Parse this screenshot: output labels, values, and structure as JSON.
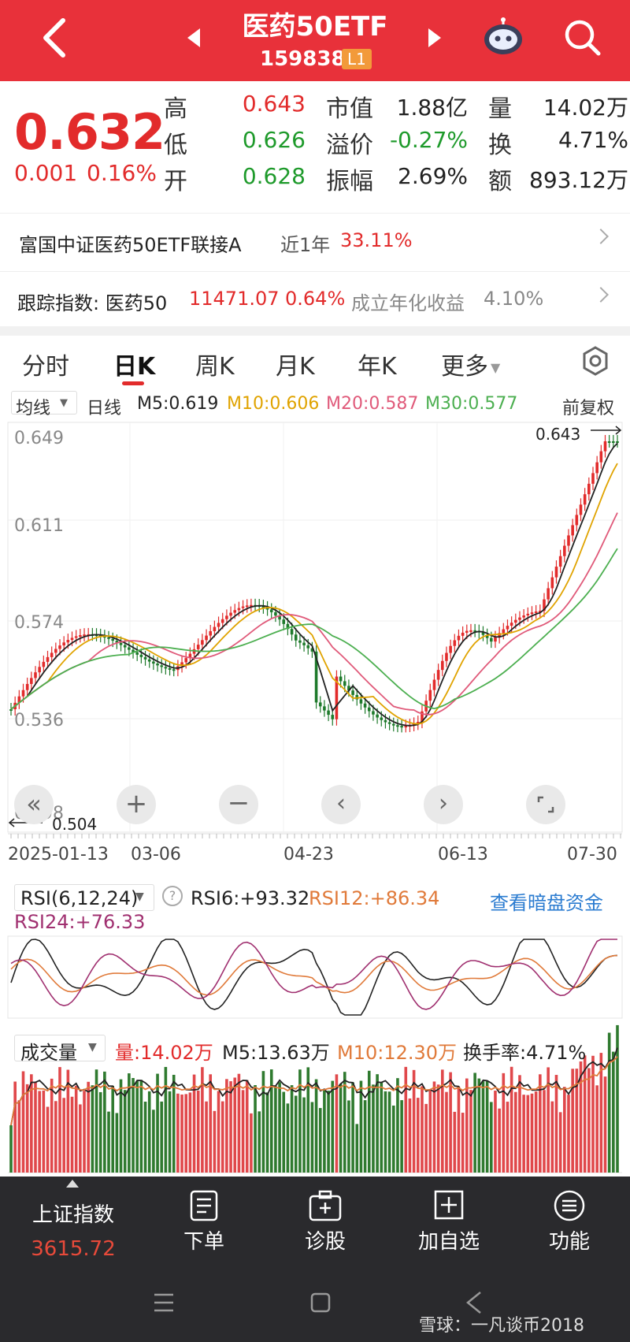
{
  "header": {
    "title": "医药50ETF",
    "code": "159838",
    "level": "L1"
  },
  "quote": {
    "price": "0.632",
    "change": "0.001",
    "change_pct": "0.16%",
    "high_label": "高",
    "high": "0.643",
    "low_label": "低",
    "low": "0.626",
    "open_label": "开",
    "open": "0.628",
    "mktcap_label": "市值",
    "mktcap": "1.88亿",
    "premium_label": "溢价",
    "premium": "-0.27%",
    "amplitude_label": "振幅",
    "amplitude": "2.69%",
    "volume_label": "量",
    "volume": "14.02万",
    "turnover_label": "换",
    "turnover": "4.71%",
    "amount_label": "额",
    "amount": "893.12万"
  },
  "linked_fund": {
    "name": "富国中证医药50ETF联接A",
    "period": "近1年",
    "return": "33.11%"
  },
  "tracking": {
    "label": "跟踪指数: 医药50",
    "value": "11471.07",
    "pct": "0.64%",
    "annual_label": "成立年化收益",
    "annual": "4.10%"
  },
  "tabs": [
    "分时",
    "日K",
    "周K",
    "月K",
    "年K",
    "更多"
  ],
  "ma": {
    "selector": "均线",
    "period": "日线",
    "m5": "M5:0.619",
    "m10": "M10:0.606",
    "m20": "M20:0.587",
    "m30": "M30:0.577",
    "adjust": "前复权"
  },
  "kline": {
    "y_ticks": [
      "0.649",
      "0.611",
      "0.574",
      "0.536",
      "0.498"
    ],
    "max_label": "0.643",
    "min_label": "0.504",
    "dates": [
      "2025-01-13",
      "03-06",
      "04-23",
      "06-13",
      "07-30"
    ]
  },
  "rsi": {
    "selector": "RSI(6,12,24)",
    "rsi6": "RSI6:+93.32",
    "rsi12": "RSI12:+86.34",
    "rsi24": "RSI24:+76.33",
    "link": "查看暗盘资金"
  },
  "volume": {
    "selector": "成交量",
    "vol": "量:14.02万",
    "m5": "M5:13.63万",
    "m10": "M10:12.30万",
    "turnover": "换手率:4.71%"
  },
  "bottom_nav": {
    "index_name": "上证指数",
    "index_value": "3615.72",
    "items": [
      "下单",
      "诊股",
      "加自选",
      "功能"
    ]
  },
  "watermark": "雪球：一凡谈币2018",
  "colors": {
    "brand_red": "#e8313a",
    "up": "#e22b2b",
    "down": "#1e9a2b",
    "m10": "#e0a300",
    "m20": "#e05a7a",
    "m30": "#4caf50"
  }
}
